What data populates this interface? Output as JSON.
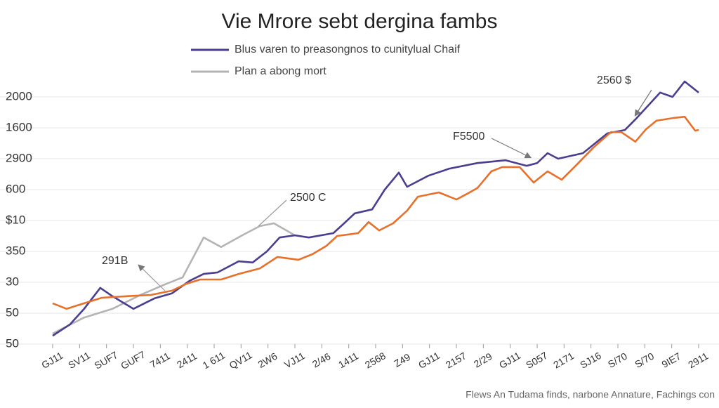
{
  "chart_data": {
    "type": "line",
    "title": "Vie Mrore sebt dergina fambs",
    "footer": "Flews An Tudama finds, narbone Annature, Fachings con",
    "annotations": [
      "2560 $",
      "F5500",
      "2500 C",
      "291B"
    ],
    "xlim": [
      0,
      24
    ],
    "xticks": [
      {
        "value": 0,
        "label": "GJ11"
      },
      {
        "value": 1,
        "label": "SV11"
      },
      {
        "value": 2,
        "label": "SUF7"
      },
      {
        "value": 3,
        "label": "GUF7"
      },
      {
        "value": 4,
        "label": "7411"
      },
      {
        "value": 5,
        "label": "2411"
      },
      {
        "value": 6,
        "label": "1 611"
      },
      {
        "value": 7,
        "label": "QV11"
      },
      {
        "value": 8,
        "label": "2W6"
      },
      {
        "value": 9,
        "label": "VJ11"
      },
      {
        "value": 10,
        "label": "2/46"
      },
      {
        "value": 11,
        "label": "1411"
      },
      {
        "value": 12,
        "label": "2568"
      },
      {
        "value": 13,
        "label": "Z49"
      },
      {
        "value": 14,
        "label": "GJ11"
      },
      {
        "value": 15,
        "label": "2157"
      },
      {
        "value": 16,
        "label": "2/29"
      },
      {
        "value": 17,
        "label": "GJ11"
      },
      {
        "value": 18,
        "label": "S057"
      },
      {
        "value": 19,
        "label": "2171"
      },
      {
        "value": 20,
        "label": "SJ16"
      },
      {
        "value": 21,
        "label": "S/70"
      },
      {
        "value": 22,
        "label": "S/70"
      },
      {
        "value": 23,
        "label": "9IE7"
      },
      {
        "value": 24,
        "label": "2911"
      }
    ],
    "ylim": [
      0,
      8
    ],
    "yticks": [
      {
        "value": 0,
        "label": "50"
      },
      {
        "value": 1,
        "label": "50"
      },
      {
        "value": 2,
        "label": "30"
      },
      {
        "value": 3,
        "label": "350"
      },
      {
        "value": 4,
        "label": "$10"
      },
      {
        "value": 5,
        "label": "600"
      },
      {
        "value": 6,
        "label": "2900"
      },
      {
        "value": 7,
        "label": "1600"
      },
      {
        "value": 8,
        "label": "2000"
      }
    ],
    "grid": true,
    "series": [
      {
        "name": "Blus varen to preasongnos to cunitylual Chaif",
        "color": "#4b3d8f",
        "x": [
          0,
          0.65,
          1.17,
          1.77,
          2.22,
          3.0,
          3.78,
          4.43,
          5.09,
          5.61,
          6.13,
          6.91,
          7.43,
          7.96,
          8.43,
          9.0,
          9.52,
          10.43,
          10.83,
          11.22,
          11.87,
          12.34,
          12.86,
          13.17,
          13.96,
          14.74,
          15.78,
          16.83,
          17.61,
          18.0,
          18.39,
          18.78,
          19.7,
          20.61,
          21.26,
          21.65,
          22.57,
          23.03,
          23.48,
          24
        ],
        "values": [
          0.27,
          0.64,
          1.14,
          1.82,
          1.55,
          1.14,
          1.48,
          1.64,
          2.05,
          2.27,
          2.32,
          2.68,
          2.64,
          3.0,
          3.45,
          3.52,
          3.45,
          3.59,
          3.91,
          4.23,
          4.36,
          5.0,
          5.55,
          5.09,
          5.45,
          5.68,
          5.86,
          5.95,
          5.77,
          5.86,
          6.18,
          6.0,
          6.18,
          6.82,
          6.93,
          7.27,
          8.14,
          8.0,
          8.5,
          8.14
        ]
      },
      {
        "name": "Plan a abong mort",
        "color": "#b4b4b4",
        "x": [
          0,
          1.17,
          2.22,
          3.26,
          4.17,
          4.83,
          5.61,
          6.26,
          7.04,
          7.7,
          8.22,
          9.0
        ],
        "values": [
          0.34,
          0.86,
          1.14,
          1.59,
          1.93,
          2.16,
          3.45,
          3.14,
          3.52,
          3.82,
          3.91,
          3.52
        ]
      },
      {
        "color": "#e8702a",
        "x": [
          0,
          0.52,
          1.17,
          1.83,
          2.74,
          3.65,
          4.43,
          4.96,
          5.48,
          6.26,
          6.91,
          7.7,
          8.35,
          9.13,
          9.65,
          10.17,
          10.57,
          11.35,
          11.74,
          12.13,
          12.65,
          13.17,
          13.57,
          14.35,
          15.0,
          15.39,
          15.78,
          16.3,
          16.7,
          17.35,
          17.87,
          18.39,
          18.91,
          19.43,
          20.09,
          20.74,
          21.13,
          21.65,
          22.04,
          22.43,
          23.09,
          23.48,
          23.87,
          24
        ],
        "values": [
          1.32,
          1.14,
          1.32,
          1.5,
          1.55,
          1.59,
          1.73,
          1.95,
          2.09,
          2.09,
          2.27,
          2.45,
          2.82,
          2.73,
          2.91,
          3.18,
          3.5,
          3.59,
          3.95,
          3.68,
          3.91,
          4.32,
          4.77,
          4.91,
          4.68,
          4.86,
          5.05,
          5.59,
          5.73,
          5.73,
          5.23,
          5.59,
          5.32,
          5.77,
          6.36,
          6.86,
          6.86,
          6.55,
          6.95,
          7.23,
          7.32,
          7.36,
          6.91,
          6.93
        ]
      }
    ]
  }
}
